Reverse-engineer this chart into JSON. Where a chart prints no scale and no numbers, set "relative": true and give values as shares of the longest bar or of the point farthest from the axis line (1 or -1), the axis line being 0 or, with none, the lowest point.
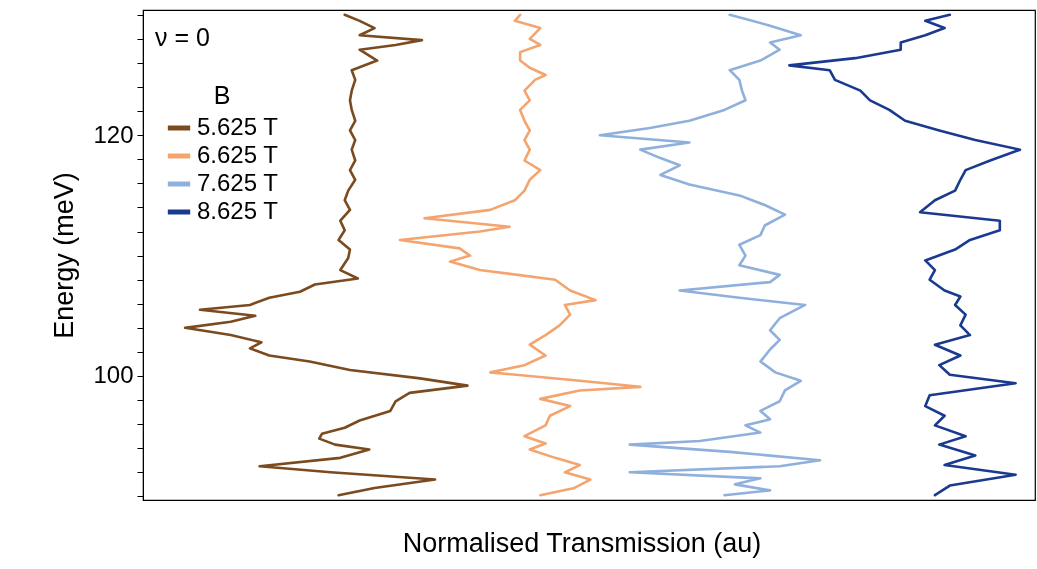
{
  "chart_data": {
    "type": "line",
    "orientation": "horizontal",
    "relative": true,
    "xlabel": "Normalised Transmission (au)",
    "ylabel": "Energy (meV)",
    "legend_title": "B",
    "annotations": [
      "ν = 0"
    ],
    "ylim": [
      89.7,
      130.4
    ],
    "yticks": [
      {
        "value": 90,
        "label": null
      },
      {
        "value": 92,
        "label": null
      },
      {
        "value": 94,
        "label": null
      },
      {
        "value": 96,
        "label": null
      },
      {
        "value": 98,
        "label": null
      },
      100,
      {
        "value": 102,
        "label": null
      },
      {
        "value": 104,
        "label": null
      },
      {
        "value": 106,
        "label": null
      },
      {
        "value": 108,
        "label": null
      },
      {
        "value": 110,
        "label": null
      },
      {
        "value": 112,
        "label": null
      },
      {
        "value": 114,
        "label": null
      },
      {
        "value": 116,
        "label": null
      },
      {
        "value": 118,
        "label": null
      },
      120,
      {
        "value": 122,
        "label": null
      },
      {
        "value": 124,
        "label": null
      },
      {
        "value": 126,
        "label": null
      },
      {
        "value": 128,
        "label": null
      },
      {
        "value": 130,
        "label": null
      }
    ],
    "tick_labels": "y",
    "grid": false,
    "legend": "top left",
    "line_style": "solid",
    "marker": "none",
    "series": [
      {
        "name": "5.625 T",
        "color": "#7b4a1e",
        "values": [
          0.223,
          0.264,
          0.333,
          0.214,
          0.133,
          0.225,
          0.258,
          0.219,
          0.201,
          0.204,
          0.23,
          0.247,
          0.282,
          0.288,
          0.304,
          0.37,
          0.316,
          0.236,
          0.19,
          0.144,
          0.122,
          0.135,
          0.1,
          0.048,
          0.1,
          0.128,
          0.065,
          0.122,
          0.144,
          0.179,
          0.196,
          0.245,
          0.225,
          0.234,
          0.236,
          0.223,
          0.23,
          0.225,
          0.236,
          0.23,
          0.234,
          0.242,
          0.236,
          0.242,
          0.238,
          0.242,
          0.236,
          0.242,
          0.238,
          0.236,
          0.238,
          0.242,
          0.238,
          0.267,
          0.247,
          0.288,
          0.318,
          0.247,
          0.264,
          0.247,
          0.23
        ],
        "x": [
          90.1,
          90.7,
          91.4,
          92.0,
          92.5,
          93.2,
          93.9,
          94.3,
          94.8,
          95.2,
          95.7,
          96.3,
          97.1,
          97.9,
          98.6,
          99.2,
          99.8,
          100.5,
          101.2,
          101.7,
          102.3,
          102.8,
          103.4,
          104.0,
          104.5,
          105.0,
          105.5,
          105.9,
          106.5,
          107.0,
          107.6,
          108.1,
          108.8,
          109.8,
          110.5,
          111.3,
          112.1,
          112.9,
          113.8,
          114.6,
          115.4,
          116.3,
          117.1,
          117.9,
          118.8,
          119.6,
          120.4,
          121.2,
          122.1,
          122.9,
          123.7,
          124.6,
          125.4,
          126.2,
          127.1,
          127.5,
          127.9,
          128.3,
          128.9,
          129.5,
          130.0
        ]
      },
      {
        "name": "6.625 T",
        "color": "#f4a46e",
        "values": [
          0.453,
          0.492,
          0.51,
          0.481,
          0.498,
          0.47,
          0.441,
          0.459,
          0.435,
          0.459,
          0.464,
          0.487,
          0.453,
          0.498,
          0.567,
          0.498,
          0.396,
          0.435,
          0.459,
          0.441,
          0.459,
          0.475,
          0.487,
          0.481,
          0.516,
          0.487,
          0.47,
          0.384,
          0.35,
          0.373,
          0.361,
          0.293,
          0.384,
          0.418,
          0.321,
          0.396,
          0.424,
          0.435,
          0.441,
          0.453,
          0.435,
          0.441,
          0.435,
          0.441,
          0.435,
          0.43,
          0.441,
          0.435,
          0.447,
          0.459,
          0.441,
          0.43,
          0.43,
          0.453,
          0.441,
          0.453,
          0.424,
          0.43
        ],
        "x": [
          90.1,
          90.7,
          91.4,
          92.0,
          92.6,
          93.2,
          93.9,
          94.4,
          95.0,
          95.9,
          96.7,
          97.5,
          98.1,
          98.8,
          99.1,
          99.6,
          100.3,
          100.9,
          101.7,
          102.6,
          103.4,
          104.2,
          105.1,
          105.9,
          106.3,
          107.1,
          108.0,
          108.8,
          109.5,
          110.0,
          110.6,
          111.3,
          112.0,
          112.4,
          113.1,
          113.8,
          114.6,
          115.4,
          116.3,
          117.1,
          117.9,
          118.8,
          119.6,
          120.4,
          121.2,
          122.1,
          122.9,
          123.7,
          124.6,
          125.0,
          125.6,
          126.2,
          126.9,
          127.5,
          128.0,
          128.9,
          129.5,
          130.0
        ]
      },
      {
        "name": "7.625 T",
        "color": "#8fb0dc",
        "values": [
          0.663,
          0.715,
          0.675,
          0.704,
          0.555,
          0.726,
          0.772,
          0.669,
          0.555,
          0.635,
          0.704,
          0.687,
          0.715,
          0.704,
          0.726,
          0.732,
          0.75,
          0.721,
          0.704,
          0.715,
          0.726,
          0.715,
          0.726,
          0.755,
          0.68,
          0.612,
          0.715,
          0.726,
          0.68,
          0.687,
          0.68,
          0.704,
          0.709,
          0.732,
          0.709,
          0.68,
          0.623,
          0.59,
          0.612,
          0.59,
          0.567,
          0.623,
          0.521,
          0.578,
          0.623,
          0.663,
          0.687,
          0.683,
          0.68,
          0.669,
          0.704,
          0.726,
          0.715,
          0.75,
          0.715,
          0.669
        ],
        "x": [
          90.1,
          90.5,
          91.0,
          91.5,
          92.0,
          92.5,
          93.0,
          93.7,
          94.3,
          94.6,
          95.3,
          95.9,
          96.4,
          97.1,
          97.9,
          98.8,
          99.6,
          100.3,
          101.2,
          102.2,
          103.0,
          103.8,
          104.8,
          105.9,
          106.5,
          107.1,
          107.8,
          108.4,
          109.2,
          110.0,
          110.9,
          111.7,
          112.5,
          113.4,
          114.2,
          115.0,
          115.9,
          116.7,
          117.5,
          118.1,
          118.8,
          119.4,
          120.0,
          120.6,
          121.2,
          122.1,
          122.9,
          123.7,
          124.6,
          125.4,
          126.2,
          127.1,
          127.7,
          128.3,
          129.1,
          130.0
        ]
      },
      {
        "name": "8.625 T",
        "color": "#1a3a8f",
        "values": [
          0.903,
          0.92,
          0.995,
          0.914,
          0.949,
          0.908,
          0.938,
          0.903,
          0.914,
          0.892,
          0.897,
          0.995,
          0.92,
          0.908,
          0.932,
          0.903,
          0.943,
          0.932,
          0.938,
          0.926,
          0.932,
          0.914,
          0.897,
          0.903,
          0.892,
          0.926,
          0.943,
          0.977,
          0.977,
          0.886,
          0.903,
          0.926,
          0.932,
          0.938,
          0.966,
          1,
          0.949,
          0.908,
          0.869,
          0.851,
          0.829,
          0.818,
          0.789,
          0.783,
          0.737,
          0.812,
          0.864,
          0.864,
          0.892,
          0.914,
          0.892,
          0.92
        ],
        "x": [
          90.1,
          90.9,
          91.8,
          92.6,
          93.4,
          94.3,
          95.0,
          95.9,
          96.7,
          97.5,
          98.4,
          99.4,
          100.1,
          100.9,
          101.7,
          102.6,
          103.4,
          104.2,
          105.1,
          105.9,
          106.6,
          107.1,
          108.0,
          108.8,
          109.6,
          110.5,
          111.3,
          112.1,
          112.9,
          113.6,
          114.6,
          115.4,
          116.3,
          117.1,
          117.9,
          118.8,
          119.6,
          120.4,
          121.2,
          122.1,
          122.9,
          123.7,
          124.6,
          125.4,
          125.8,
          126.4,
          127.1,
          127.7,
          128.3,
          128.9,
          129.5,
          130.0
        ]
      }
    ]
  }
}
